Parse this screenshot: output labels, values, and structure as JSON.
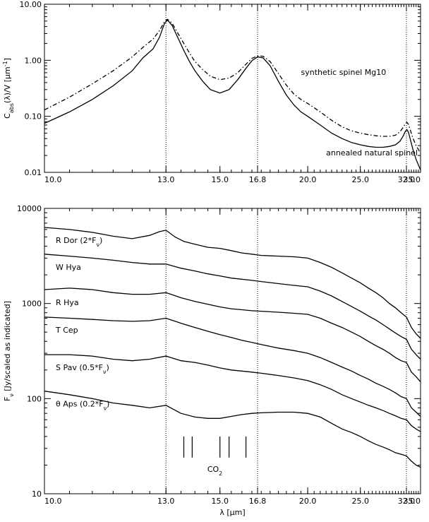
{
  "chart_data": [
    {
      "type": "line",
      "panel": "top",
      "yscale": "log",
      "xscale": "reciprocal",
      "xlim": [
        10.0,
        35.0
      ],
      "ylim": [
        0.01,
        10.0
      ],
      "xtick_labels": [
        "10.0",
        "13.0",
        "15.0",
        "16.8",
        "20.0",
        "25.0",
        "32.0",
        "35.0"
      ],
      "xtick_values": [
        10.0,
        13.0,
        15.0,
        16.8,
        20.0,
        25.0,
        32.0,
        35.0
      ],
      "ytick_labels": [
        "10.00",
        "1.00",
        "0.10",
        "0.01"
      ],
      "ytick_values": [
        10.0,
        1.0,
        0.1,
        0.01
      ],
      "ylabel": {
        "main": "C",
        "sub": "abs",
        "rest": "(λ)/V [μm",
        "sup": "-1",
        "end": "]"
      },
      "vlines": [
        13.0,
        16.8,
        32.0
      ],
      "annotations": [
        {
          "text": "synthetic spinel Mg10",
          "x": 19.5,
          "y": 0.55
        },
        {
          "text": "annealed natural spinel",
          "x": 21.5,
          "y": 0.02
        }
      ],
      "series": [
        {
          "style": "solid",
          "x": [
            10.0,
            10.5,
            11.0,
            11.5,
            12.0,
            12.3,
            12.6,
            12.8,
            12.95,
            13.05,
            13.2,
            13.4,
            13.6,
            13.8,
            14.0,
            14.3,
            14.6,
            15.0,
            15.4,
            15.8,
            16.2,
            16.5,
            16.8,
            17.1,
            17.5,
            18.0,
            18.5,
            19.0,
            19.5,
            20.0,
            21.0,
            22.0,
            23.0,
            24.0,
            25.0,
            26.0,
            27.0,
            28.0,
            29.0,
            30.0,
            30.8,
            31.4,
            31.8,
            32.1,
            32.4,
            32.8,
            33.3,
            34.0,
            35.0
          ],
          "y": [
            0.075,
            0.12,
            0.2,
            0.35,
            0.65,
            1.1,
            1.6,
            2.6,
            4.5,
            5.2,
            4.2,
            2.5,
            1.5,
            0.95,
            0.65,
            0.42,
            0.3,
            0.26,
            0.3,
            0.45,
            0.72,
            0.98,
            1.15,
            1.1,
            0.8,
            0.42,
            0.24,
            0.16,
            0.12,
            0.1,
            0.07,
            0.05,
            0.04,
            0.034,
            0.031,
            0.029,
            0.028,
            0.028,
            0.029,
            0.031,
            0.036,
            0.045,
            0.054,
            0.058,
            0.052,
            0.038,
            0.026,
            0.017,
            0.011
          ]
        },
        {
          "style": "dashdot",
          "x": [
            10.0,
            10.5,
            11.0,
            11.5,
            12.0,
            12.3,
            12.6,
            12.8,
            12.95,
            13.05,
            13.2,
            13.4,
            13.6,
            13.8,
            14.0,
            14.3,
            14.6,
            15.0,
            15.4,
            15.8,
            16.2,
            16.5,
            16.8,
            17.1,
            17.5,
            18.0,
            18.5,
            19.0,
            19.5,
            20.0,
            21.0,
            22.0,
            23.0,
            24.0,
            25.0,
            26.0,
            27.0,
            28.0,
            29.0,
            30.0,
            30.8,
            31.4,
            31.8,
            32.1,
            32.4,
            32.8,
            33.3,
            34.0,
            35.0
          ],
          "y": [
            0.13,
            0.22,
            0.38,
            0.65,
            1.15,
            1.7,
            2.4,
            3.4,
            4.9,
            5.4,
            4.6,
            3.0,
            2.0,
            1.35,
            0.95,
            0.68,
            0.52,
            0.45,
            0.48,
            0.6,
            0.85,
            1.08,
            1.2,
            1.18,
            0.95,
            0.58,
            0.36,
            0.25,
            0.2,
            0.17,
            0.12,
            0.085,
            0.065,
            0.055,
            0.05,
            0.047,
            0.045,
            0.044,
            0.044,
            0.046,
            0.053,
            0.064,
            0.074,
            0.078,
            0.072,
            0.056,
            0.041,
            0.03,
            0.022
          ]
        }
      ]
    },
    {
      "type": "line",
      "panel": "bottom",
      "yscale": "log",
      "xscale": "reciprocal",
      "xlim": [
        10.0,
        35.0
      ],
      "ylim": [
        10,
        10000
      ],
      "xtick_labels": [
        "10.0",
        "13.0",
        "15.0",
        "16.8",
        "20.0",
        "25.0",
        "32.0",
        "35.0"
      ],
      "xtick_values": [
        10.0,
        13.0,
        15.0,
        16.8,
        20.0,
        25.0,
        32.0,
        35.0
      ],
      "ytick_labels": [
        "10000",
        "1000",
        "100",
        "10"
      ],
      "ytick_values": [
        10000,
        1000,
        100,
        10
      ],
      "xlabel": {
        "main": "λ [μm]"
      },
      "ylabel": {
        "main": "F",
        "sub": "ν",
        "rest": " [Jy/scaled as indicated]"
      },
      "vlines": [
        13.0,
        16.8,
        32.0
      ],
      "co2_label": {
        "main": "CO",
        "sub": "2"
      },
      "co2_marks": [
        13.6,
        13.9,
        15.0,
        15.4,
        16.2
      ],
      "series": [
        {
          "name": "R Dor (2*Fν)",
          "label": {
            "main": "R Dor (2*F",
            "sub": "ν",
            "end": ")"
          },
          "x": [
            10.0,
            10.5,
            11.0,
            11.5,
            12.0,
            12.5,
            12.8,
            13.0,
            13.3,
            13.6,
            14.0,
            14.5,
            15.0,
            15.5,
            16.0,
            16.5,
            17.0,
            18.0,
            19.0,
            20.0,
            21.0,
            22.0,
            23.0,
            24.0,
            25.0,
            26.0,
            27.0,
            28.0,
            29.0,
            30.0,
            31.0,
            32.0,
            33.0,
            34.0,
            35.0
          ],
          "y": [
            6300,
            6000,
            5600,
            5100,
            4800,
            5200,
            5700,
            5900,
            5000,
            4500,
            4200,
            3900,
            3800,
            3600,
            3400,
            3300,
            3200,
            3150,
            3100,
            3000,
            2700,
            2400,
            2100,
            1850,
            1650,
            1450,
            1300,
            1150,
            1000,
            900,
            800,
            720,
            560,
            480,
            430
          ]
        },
        {
          "name": "W Hya",
          "label": {
            "main": "W Hya"
          },
          "x": [
            10.0,
            10.5,
            11.0,
            11.5,
            12.0,
            12.5,
            13.0,
            13.5,
            14.0,
            14.5,
            15.0,
            15.5,
            16.0,
            16.5,
            17.0,
            18.0,
            19.0,
            20.0,
            21.0,
            22.0,
            23.0,
            24.0,
            25.0,
            26.0,
            27.0,
            28.0,
            29.0,
            30.0,
            31.0,
            32.0,
            33.0,
            34.0,
            35.0
          ],
          "y": [
            3300,
            3150,
            3000,
            2850,
            2700,
            2600,
            2600,
            2350,
            2200,
            2050,
            1950,
            1850,
            1800,
            1750,
            1700,
            1620,
            1550,
            1500,
            1350,
            1200,
            1050,
            930,
            830,
            740,
            670,
            600,
            540,
            490,
            450,
            420,
            330,
            290,
            260
          ]
        },
        {
          "name": "R Hya",
          "label": {
            "main": "R Hya"
          },
          "x": [
            10.0,
            10.5,
            11.0,
            11.5,
            12.0,
            12.5,
            13.0,
            13.5,
            14.0,
            14.5,
            15.0,
            15.5,
            16.0,
            16.5,
            17.0,
            18.0,
            19.0,
            20.0,
            21.0,
            22.0,
            23.0,
            24.0,
            25.0,
            26.0,
            27.0,
            28.0,
            29.0,
            30.0,
            31.0,
            32.0,
            33.0,
            34.0,
            35.0
          ],
          "y": [
            1400,
            1450,
            1400,
            1300,
            1250,
            1250,
            1300,
            1150,
            1050,
            980,
            920,
            880,
            860,
            840,
            830,
            810,
            790,
            770,
            700,
            620,
            560,
            500,
            450,
            400,
            360,
            330,
            300,
            270,
            250,
            240,
            190,
            170,
            150
          ]
        },
        {
          "name": "T Cep",
          "label": {
            "main": "T Cep"
          },
          "x": [
            10.0,
            10.5,
            11.0,
            11.5,
            12.0,
            12.5,
            13.0,
            13.5,
            14.0,
            14.5,
            15.0,
            15.5,
            16.0,
            16.5,
            17.0,
            18.0,
            19.0,
            20.0,
            21.0,
            22.0,
            23.0,
            24.0,
            25.0,
            26.0,
            27.0,
            28.0,
            29.0,
            30.0,
            31.0,
            32.0,
            33.0,
            34.0,
            35.0
          ],
          "y": [
            720,
            700,
            680,
            660,
            650,
            660,
            700,
            620,
            560,
            510,
            470,
            440,
            410,
            390,
            370,
            340,
            320,
            300,
            270,
            240,
            215,
            195,
            175,
            160,
            145,
            135,
            125,
            115,
            105,
            100,
            80,
            72,
            65
          ]
        },
        {
          "name": "S Pav (0.5*Fν)",
          "label": {
            "main": "S Pav (0.5*F",
            "sub": "ν",
            "end": ")"
          },
          "x": [
            10.0,
            10.5,
            11.0,
            11.5,
            12.0,
            12.5,
            13.0,
            13.5,
            14.0,
            14.5,
            15.0,
            15.5,
            16.0,
            16.5,
            17.0,
            18.0,
            19.0,
            20.0,
            21.0,
            22.0,
            23.0,
            24.0,
            25.0,
            26.0,
            27.0,
            28.0,
            29.0,
            30.0,
            31.0,
            32.0,
            33.0,
            34.0,
            35.0
          ],
          "y": [
            290,
            290,
            280,
            260,
            250,
            260,
            280,
            250,
            240,
            225,
            210,
            200,
            195,
            190,
            185,
            175,
            165,
            155,
            140,
            125,
            110,
            100,
            92,
            85,
            80,
            75,
            70,
            66,
            62,
            60,
            52,
            48,
            45
          ]
        },
        {
          "name": "θ Aps (0.2*Fν)",
          "label": {
            "main": "θ Aps (0.2*F",
            "sub": "ν",
            "end": ")"
          },
          "x": [
            10.0,
            10.5,
            11.0,
            11.5,
            12.0,
            12.5,
            13.0,
            13.5,
            14.0,
            14.5,
            15.0,
            15.5,
            16.0,
            16.5,
            17.0,
            18.0,
            19.0,
            20.0,
            21.0,
            22.0,
            23.0,
            24.0,
            25.0,
            26.0,
            27.0,
            28.0,
            29.0,
            30.0,
            31.0,
            32.0,
            33.0,
            34.0,
            35.0
          ],
          "y": [
            120,
            110,
            100,
            90,
            85,
            80,
            85,
            70,
            64,
            62,
            62,
            65,
            68,
            70,
            71,
            72,
            72,
            70,
            64,
            55,
            48,
            44,
            40,
            36,
            33,
            31,
            29,
            27,
            26,
            25,
            22,
            20,
            19
          ]
        }
      ]
    }
  ]
}
